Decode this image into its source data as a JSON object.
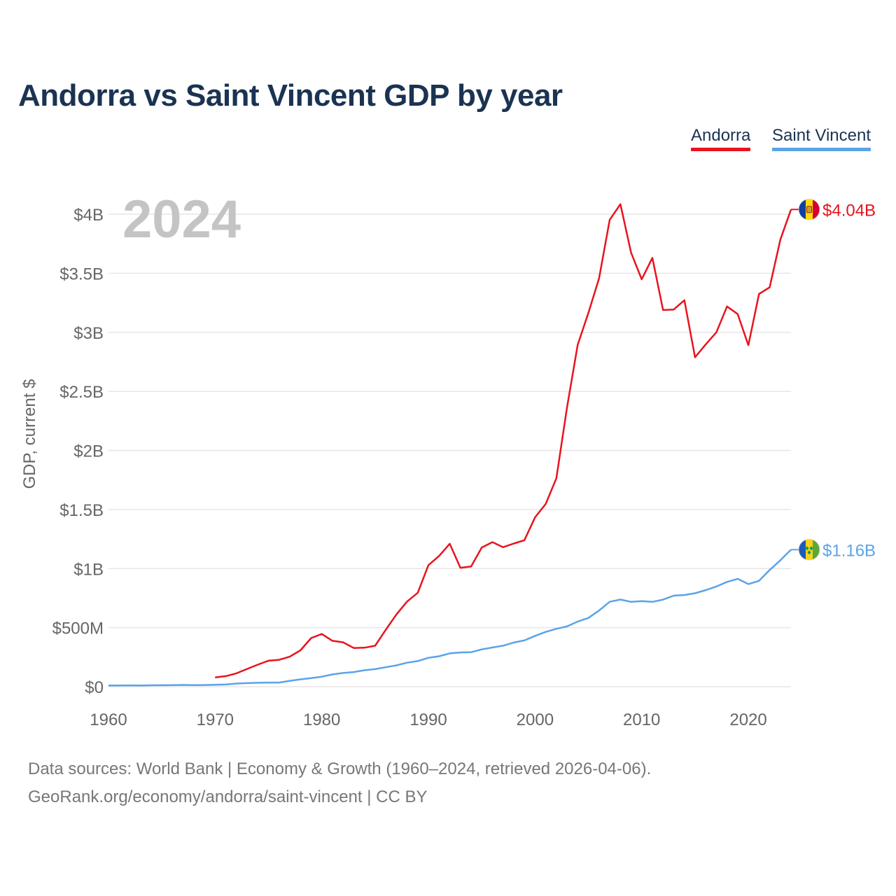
{
  "title": "Andorra vs Saint Vincent GDP by year",
  "year_label": "2024",
  "legend": {
    "andorra": {
      "label": "Andorra",
      "color": "#e8141e"
    },
    "saint_vincent": {
      "label": "Saint Vincent",
      "color": "#5ba3e8"
    }
  },
  "footer": {
    "line1": "Data sources: World Bank | Economy & Growth (1960–2024, retrieved 2026-04-06).",
    "line2": "GeoRank.org/economy/andorra/saint-vincent | CC BY"
  },
  "chart_data": {
    "type": "line",
    "title": "Andorra vs Saint Vincent GDP by year",
    "xlabel": "",
    "ylabel": "GDP, current $",
    "xlim": [
      1960,
      2024
    ],
    "ylim": [
      0,
      4000000000
    ],
    "x_ticks": [
      1960,
      1970,
      1980,
      1990,
      2000,
      2010,
      2020
    ],
    "x_tick_labels": [
      "1960",
      "1970",
      "1980",
      "1990",
      "2000",
      "2010",
      "2020"
    ],
    "y_ticks": [
      0,
      500000000,
      1000000000,
      1500000000,
      2000000000,
      2500000000,
      3000000000,
      3500000000,
      4000000000
    ],
    "y_tick_labels": [
      "$0",
      "$500M",
      "$1B",
      "$1.5B",
      "$2B",
      "$2.5B",
      "$3B",
      "$3.5B",
      "$4B"
    ],
    "grid": true,
    "legend_position": "top-right",
    "series": [
      {
        "name": "Andorra",
        "color": "#e8141e",
        "end_label": "$4.04B",
        "flag": "andorra-flag",
        "x": [
          1970,
          1971,
          1972,
          1973,
          1974,
          1975,
          1976,
          1977,
          1978,
          1979,
          1980,
          1981,
          1982,
          1983,
          1984,
          1985,
          1986,
          1987,
          1988,
          1989,
          1990,
          1991,
          1992,
          1993,
          1994,
          1995,
          1996,
          1997,
          1998,
          1999,
          2000,
          2001,
          2002,
          2003,
          2004,
          2005,
          2006,
          2007,
          2008,
          2009,
          2010,
          2011,
          2012,
          2013,
          2014,
          2015,
          2016,
          2017,
          2018,
          2019,
          2020,
          2021,
          2022,
          2023,
          2024
        ],
        "values": [
          78600000,
          89400000,
          113400000,
          150800000,
          186600000,
          220100000,
          227300000,
          254000000,
          308300000,
          411600000,
          446400000,
          388900000,
          375900000,
          327900000,
          330100000,
          346700000,
          482000000,
          611300000,
          721400000,
          795400000,
          1029000000,
          1107000000,
          1210000000,
          1007000000,
          1018000000,
          1178000000,
          1224000000,
          1181000000,
          1212000000,
          1240000000,
          1434000000,
          1547000000,
          1764000000,
          2367000000,
          2895000000,
          3163000000,
          3457000000,
          3952000000,
          4085000000,
          3675000000,
          3449000000,
          3630000000,
          3189000000,
          3193000000,
          3272000000,
          2789000000,
          2897000000,
          3000000000,
          3219000000,
          3155000000,
          2891000000,
          3325000000,
          3381000000,
          3785000000,
          4040000000
        ]
      },
      {
        "name": "Saint Vincent",
        "color": "#5ba3e8",
        "end_label": "$1.16B",
        "flag": "saint-vincent-flag",
        "x": [
          1960,
          1961,
          1962,
          1963,
          1964,
          1965,
          1966,
          1967,
          1968,
          1969,
          1970,
          1971,
          1972,
          1973,
          1974,
          1975,
          1976,
          1977,
          1978,
          1979,
          1980,
          1981,
          1982,
          1983,
          1984,
          1985,
          1986,
          1987,
          1988,
          1989,
          1990,
          1991,
          1992,
          1993,
          1994,
          1995,
          1996,
          1997,
          1998,
          1999,
          2000,
          2001,
          2002,
          2003,
          2004,
          2005,
          2006,
          2007,
          2008,
          2009,
          2010,
          2011,
          2012,
          2013,
          2014,
          2015,
          2016,
          2017,
          2018,
          2019,
          2020,
          2021,
          2022,
          2023,
          2024
        ],
        "values": [
          9900000,
          10500000,
          11500000,
          10900000,
          11800000,
          12600000,
          13300000,
          14600000,
          13000000,
          14100000,
          15900000,
          18300000,
          26400000,
          30100000,
          33400000,
          35200000,
          34700000,
          49800000,
          62000000,
          72800000,
          84900000,
          104000000,
          116000000,
          124000000,
          139000000,
          149000000,
          165000000,
          181000000,
          203000000,
          217000000,
          245000000,
          258000000,
          282000000,
          290000000,
          292000000,
          316000000,
          332000000,
          347000000,
          374000000,
          392000000,
          430000000,
          464000000,
          490000000,
          510000000,
          552000000,
          582000000,
          645000000,
          719000000,
          738000000,
          718000000,
          724000000,
          718000000,
          737000000,
          771000000,
          776000000,
          791000000,
          818000000,
          848000000,
          887000000,
          913000000,
          869000000,
          896000000,
          988000000,
          1070000000,
          1160000000
        ]
      }
    ]
  }
}
